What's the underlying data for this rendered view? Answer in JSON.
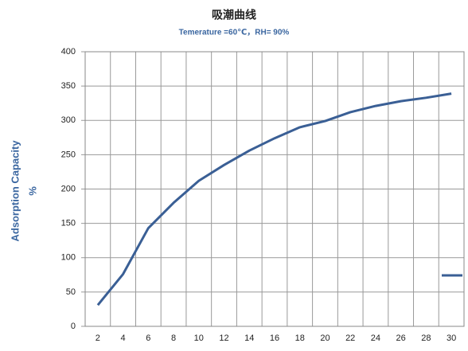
{
  "chart_data": {
    "type": "line",
    "title": "吸潮曲线",
    "subtitle": "Temerature =60℃，RH= 90%",
    "y_label": [
      "Adsorption Capacity",
      "%"
    ],
    "categories": [
      "2",
      "4",
      "6",
      "8",
      "10",
      "12",
      "14",
      "16",
      "18",
      "20",
      "22",
      "24",
      "26",
      "28",
      "30"
    ],
    "series": [
      {
        "color": "#3a5f95",
        "values": [
          31,
          76,
          143,
          180,
          212,
          235,
          256,
          274,
          290,
          299,
          312,
          321,
          328,
          333,
          339
        ]
      }
    ],
    "ylim": [
      0,
      400
    ],
    "yticks": [
      0,
      50,
      100,
      150,
      200,
      250,
      300,
      350,
      400
    ],
    "grid": true
  }
}
